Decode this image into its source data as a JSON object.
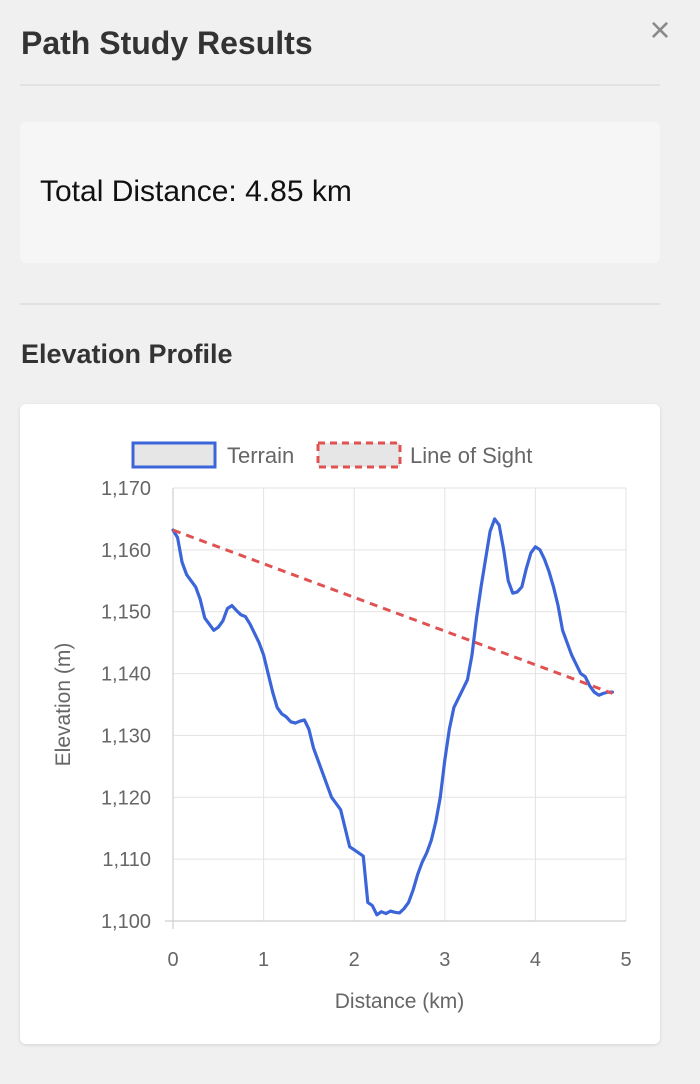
{
  "panel": {
    "title": "Path Study Results",
    "close_symbol": "×"
  },
  "summary": {
    "label": "Total Distance:",
    "value": "4.85 km"
  },
  "section": {
    "elevation_title": "Elevation Profile"
  },
  "chart_data": {
    "type": "line",
    "xlabel": "Distance (km)",
    "ylabel": "Elevation (m)",
    "xlim": [
      0,
      5
    ],
    "ylim": [
      1100,
      1170
    ],
    "xticks": [
      0,
      1,
      2,
      3,
      4,
      5
    ],
    "yticks": [
      1100,
      1110,
      1120,
      1130,
      1140,
      1150,
      1160,
      1170
    ],
    "ytick_labels": [
      "1,100",
      "1,110",
      "1,120",
      "1,130",
      "1,140",
      "1,150",
      "1,160",
      "1,170"
    ],
    "grid": true,
    "legend_position": "top",
    "series": [
      {
        "name": "Terrain",
        "color": "#3b65d9",
        "dashed": false,
        "x": [
          0,
          0.05,
          0.1,
          0.15,
          0.2,
          0.25,
          0.3,
          0.35,
          0.4,
          0.45,
          0.5,
          0.55,
          0.6,
          0.65,
          0.7,
          0.75,
          0.8,
          0.85,
          0.9,
          0.95,
          1.0,
          1.05,
          1.1,
          1.15,
          1.2,
          1.25,
          1.3,
          1.35,
          1.4,
          1.45,
          1.5,
          1.55,
          1.6,
          1.65,
          1.7,
          1.75,
          1.8,
          1.85,
          1.9,
          1.95,
          2.0,
          2.05,
          2.1,
          2.15,
          2.2,
          2.25,
          2.3,
          2.35,
          2.4,
          2.45,
          2.5,
          2.55,
          2.6,
          2.65,
          2.7,
          2.75,
          2.8,
          2.85,
          2.9,
          2.95,
          3.0,
          3.05,
          3.1,
          3.15,
          3.2,
          3.25,
          3.3,
          3.35,
          3.4,
          3.45,
          3.5,
          3.55,
          3.6,
          3.65,
          3.7,
          3.75,
          3.8,
          3.85,
          3.9,
          3.95,
          4.0,
          4.05,
          4.1,
          4.15,
          4.2,
          4.25,
          4.3,
          4.35,
          4.4,
          4.45,
          4.5,
          4.55,
          4.6,
          4.65,
          4.7,
          4.75,
          4.8,
          4.85
        ],
        "y": [
          1163.2,
          1162,
          1158,
          1156,
          1155,
          1154,
          1152,
          1149,
          1148,
          1147,
          1147.5,
          1148.5,
          1150.5,
          1151,
          1150.2,
          1149.5,
          1149.2,
          1148,
          1146.5,
          1145,
          1143,
          1140,
          1137,
          1134.5,
          1133.5,
          1133,
          1132.2,
          1132,
          1132.3,
          1132.5,
          1131,
          1128,
          1126,
          1124,
          1122,
          1120,
          1119,
          1118,
          1115,
          1112,
          1111.5,
          1111,
          1110.5,
          1103,
          1102.5,
          1101,
          1101.5,
          1101.2,
          1101.6,
          1101.4,
          1101.3,
          1102,
          1103,
          1105,
          1107.5,
          1109.5,
          1111,
          1113,
          1116,
          1120,
          1126,
          1131,
          1134.5,
          1136,
          1137.5,
          1139,
          1143,
          1149,
          1154,
          1158.5,
          1163,
          1165,
          1164,
          1160,
          1155,
          1153,
          1153.2,
          1154,
          1157,
          1159.5,
          1160.5,
          1160,
          1158.5,
          1156.5,
          1154,
          1151,
          1147,
          1145,
          1143,
          1141.5,
          1140,
          1139.5,
          1138,
          1137,
          1136.5,
          1136.8,
          1137,
          1137
        ]
      },
      {
        "name": "Line of Sight",
        "color": "#e05252",
        "dashed": true,
        "x": [
          0,
          4.85
        ],
        "y": [
          1163.2,
          1136.8
        ]
      }
    ]
  }
}
